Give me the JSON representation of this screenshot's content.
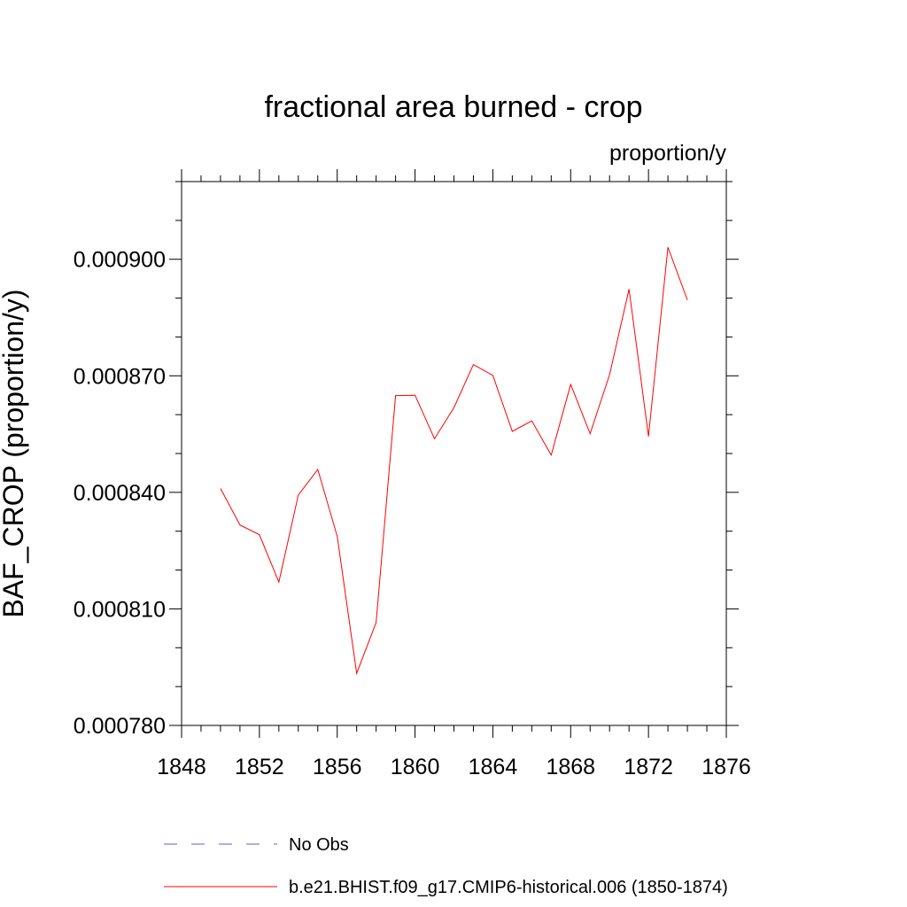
{
  "chart_data": {
    "type": "line",
    "title": "fractional area burned - crop",
    "units": "proportion/y",
    "xlabel": "",
    "ylabel": "BAF_CROP  (proportion/y)",
    "xlim": [
      1848,
      1876
    ],
    "ylim": [
      0.00078,
      0.00092
    ],
    "x_ticks": [
      1848,
      1852,
      1856,
      1860,
      1864,
      1868,
      1872,
      1876
    ],
    "x_tick_labels": [
      "1848",
      "1852",
      "1856",
      "1860",
      "1864",
      "1868",
      "1872",
      "1876"
    ],
    "y_ticks": [
      0.00078,
      0.00081,
      0.00084,
      0.00087,
      0.0009
    ],
    "y_tick_labels": [
      "0.000780",
      "0.000810",
      "0.000840",
      "0.000870",
      "0.000900"
    ],
    "grid": false,
    "legend_position": "bottom",
    "x": [
      1850,
      1851,
      1852,
      1853,
      1854,
      1855,
      1856,
      1857,
      1858,
      1859,
      1860,
      1861,
      1862,
      1863,
      1864,
      1865,
      1866,
      1867,
      1868,
      1869,
      1870,
      1871,
      1872,
      1873,
      1874
    ],
    "series": [
      {
        "name": "b.e21.BHIST.f09_g17.CMIP6-historical.006 (1850-1874)",
        "color": "#ff0000",
        "style": "solid",
        "values": [
          0.000841,
          0.0008316,
          0.0008291,
          0.0008169,
          0.0008393,
          0.0008459,
          0.0008287,
          0.0007934,
          0.0008065,
          0.0008649,
          0.000865,
          0.0008538,
          0.0008618,
          0.0008729,
          0.0008701,
          0.0008557,
          0.0008584,
          0.0008496,
          0.0008678,
          0.0008551,
          0.0008703,
          0.0008923,
          0.0008544,
          0.0009031,
          0.0008895
        ]
      }
    ],
    "legend": [
      {
        "label": "No Obs",
        "color": "#6060c8",
        "style": "dashed"
      },
      {
        "label": "b.e21.BHIST.f09_g17.CMIP6-historical.006 (1850-1874)",
        "color": "#ff0000",
        "style": "solid"
      }
    ]
  }
}
